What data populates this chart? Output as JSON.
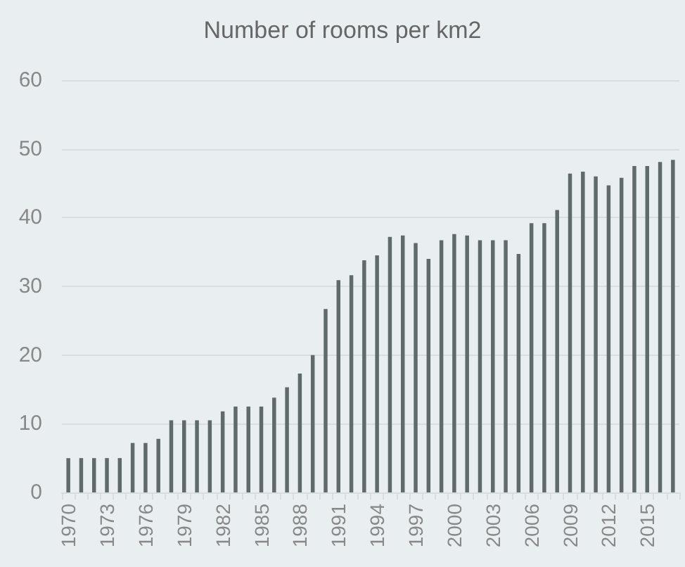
{
  "chart_data": {
    "type": "bar",
    "title": "Number of rooms per km2",
    "categories": [
      "1970",
      null,
      null,
      "1973",
      null,
      null,
      "1976",
      null,
      null,
      "1979",
      null,
      null,
      "1982",
      null,
      null,
      "1985",
      null,
      null,
      "1988",
      null,
      null,
      "1991",
      null,
      null,
      "1994",
      null,
      null,
      "1997",
      null,
      null,
      "2000",
      null,
      null,
      "2003",
      null,
      null,
      "2006",
      null,
      null,
      "2009",
      null,
      null,
      "2012",
      null,
      null,
      "2015",
      null,
      null
    ],
    "values": [
      5,
      5,
      5,
      5,
      5,
      7.2,
      7.2,
      7.8,
      10.5,
      10.5,
      10.5,
      10.5,
      11.8,
      12.5,
      12.5,
      12.5,
      13.8,
      15.3,
      17.3,
      20,
      26.7,
      30.9,
      31.6,
      33.8,
      34.5,
      37.2,
      37.4,
      36.3,
      34,
      36.7,
      37.6,
      37.4,
      36.7,
      36.7,
      36.7,
      34.7,
      39.2,
      39.2,
      41.1,
      46.4,
      46.7,
      46,
      44.7,
      45.8,
      47.5,
      47.5,
      48.1,
      48.4
    ],
    "color": "#5f6b6b",
    "ylim": [
      0,
      60
    ],
    "yticks": [
      0,
      10,
      20,
      30,
      40,
      50,
      60
    ],
    "grid": "y"
  }
}
